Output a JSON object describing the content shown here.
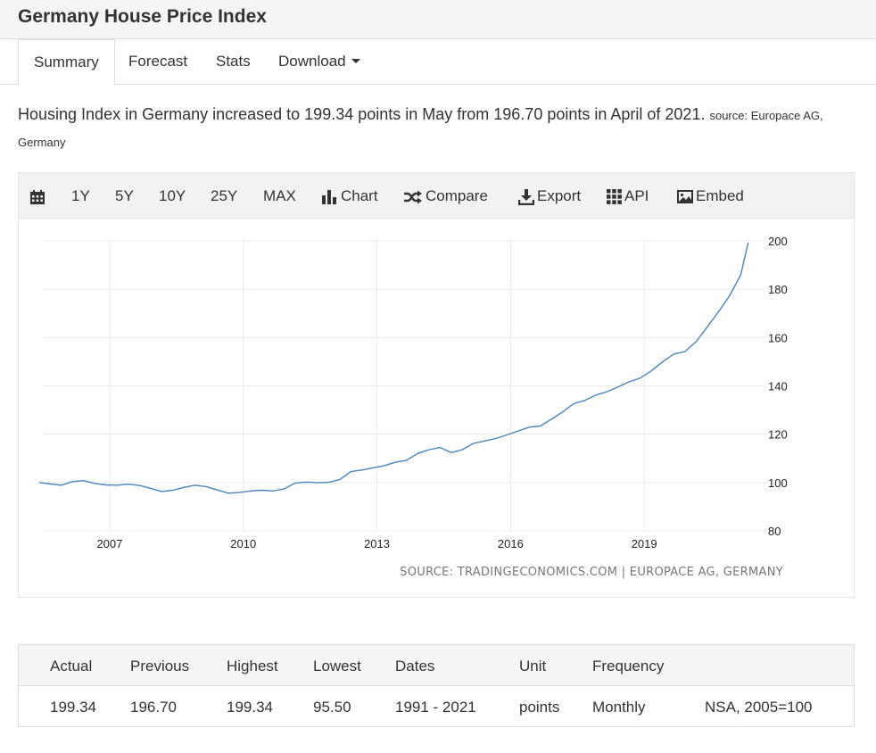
{
  "page": {
    "title": "Germany House Price Index"
  },
  "tabs": [
    {
      "label": "Summary",
      "active": true
    },
    {
      "label": "Forecast"
    },
    {
      "label": "Stats"
    },
    {
      "label": "Download",
      "has_dropdown": true
    }
  ],
  "description": {
    "text": "Housing Index in Germany increased to 199.34 points in May from 196.70 points in April of 2021.",
    "source": "source: Europace AG, Germany"
  },
  "toolbar": {
    "items": [
      {
        "label": "",
        "icon": "calendar-icon"
      },
      {
        "label": "1Y"
      },
      {
        "label": "5Y"
      },
      {
        "label": "10Y"
      },
      {
        "label": "25Y"
      },
      {
        "label": "MAX"
      },
      {
        "label": "Chart",
        "icon": "bar-chart-icon"
      },
      {
        "label": "Compare",
        "icon": "shuffle-icon"
      },
      {
        "label": "Export",
        "icon": "download-icon"
      },
      {
        "label": "API",
        "icon": "grid-icon"
      },
      {
        "label": "Embed",
        "icon": "image-icon"
      }
    ]
  },
  "chart_data": {
    "type": "line",
    "title": "",
    "xlabel": "",
    "ylabel": "",
    "x_tick_labels": [
      "2007",
      "2010",
      "2013",
      "2016",
      "2019"
    ],
    "y_tick_labels": [
      "80",
      "100",
      "120",
      "140",
      "160",
      "180",
      "200"
    ],
    "xlim": [
      2005.5,
      2021.7
    ],
    "ylim": [
      80,
      200
    ],
    "y_axis_position": "right",
    "grid": true,
    "line_color": "#4a84bd",
    "source_text": "SOURCE: TRADINGECONOMICS.COM | EUROPACE AG, GERMANY",
    "series": [
      {
        "x": [
          "2005-06",
          "2005-09",
          "2005-12",
          "2006-03",
          "2006-06",
          "2006-09",
          "2006-12",
          "2007-03",
          "2007-06",
          "2007-09",
          "2007-12",
          "2008-03",
          "2008-06",
          "2008-09",
          "2008-12",
          "2009-03",
          "2009-06",
          "2009-09",
          "2009-12",
          "2010-03",
          "2010-06",
          "2010-09",
          "2010-12",
          "2011-03",
          "2011-06",
          "2011-09",
          "2011-12",
          "2012-03",
          "2012-06",
          "2012-09",
          "2012-12",
          "2013-03",
          "2013-06",
          "2013-09",
          "2013-12",
          "2014-03",
          "2014-06",
          "2014-09",
          "2014-12",
          "2015-03",
          "2015-06",
          "2015-09",
          "2015-12",
          "2016-03",
          "2016-06",
          "2016-09",
          "2016-12",
          "2017-03",
          "2017-06",
          "2017-09",
          "2017-12",
          "2018-03",
          "2018-06",
          "2018-09",
          "2018-12",
          "2019-03",
          "2019-06",
          "2019-09",
          "2019-12",
          "2020-03",
          "2020-06",
          "2020-09",
          "2020-12",
          "2021-03",
          "2021-05"
        ],
        "y": [
          100.0,
          99.4,
          98.9,
          100.4,
          100.8,
          99.6,
          99.0,
          98.9,
          99.3,
          98.8,
          97.6,
          96.3,
          96.8,
          98.0,
          98.9,
          98.3,
          96.9,
          95.6,
          95.9,
          96.5,
          96.8,
          96.5,
          97.4,
          99.8,
          100.2,
          99.9,
          100.1,
          101.2,
          104.5,
          105.2,
          106.1,
          107.0,
          108.4,
          109.2,
          112.0,
          113.6,
          114.5,
          112.4,
          113.6,
          116.2,
          117.2,
          118.2,
          119.7,
          121.3,
          122.9,
          123.4,
          126.2,
          129.2,
          132.6,
          134.0,
          136.2,
          137.6,
          139.6,
          141.7,
          143.3,
          146.3,
          150.0,
          153.2,
          154.2,
          158.3,
          164.4,
          170.6,
          177.3,
          186.0,
          199.3
        ]
      }
    ]
  },
  "stats": {
    "headers": [
      "Actual",
      "Previous",
      "Highest",
      "Lowest",
      "Dates",
      "Unit",
      "Frequency",
      ""
    ],
    "values": [
      "199.34",
      "196.70",
      "199.34",
      "95.50",
      "1991 - 2021",
      "points",
      "Monthly",
      "NSA, 2005=100"
    ]
  }
}
